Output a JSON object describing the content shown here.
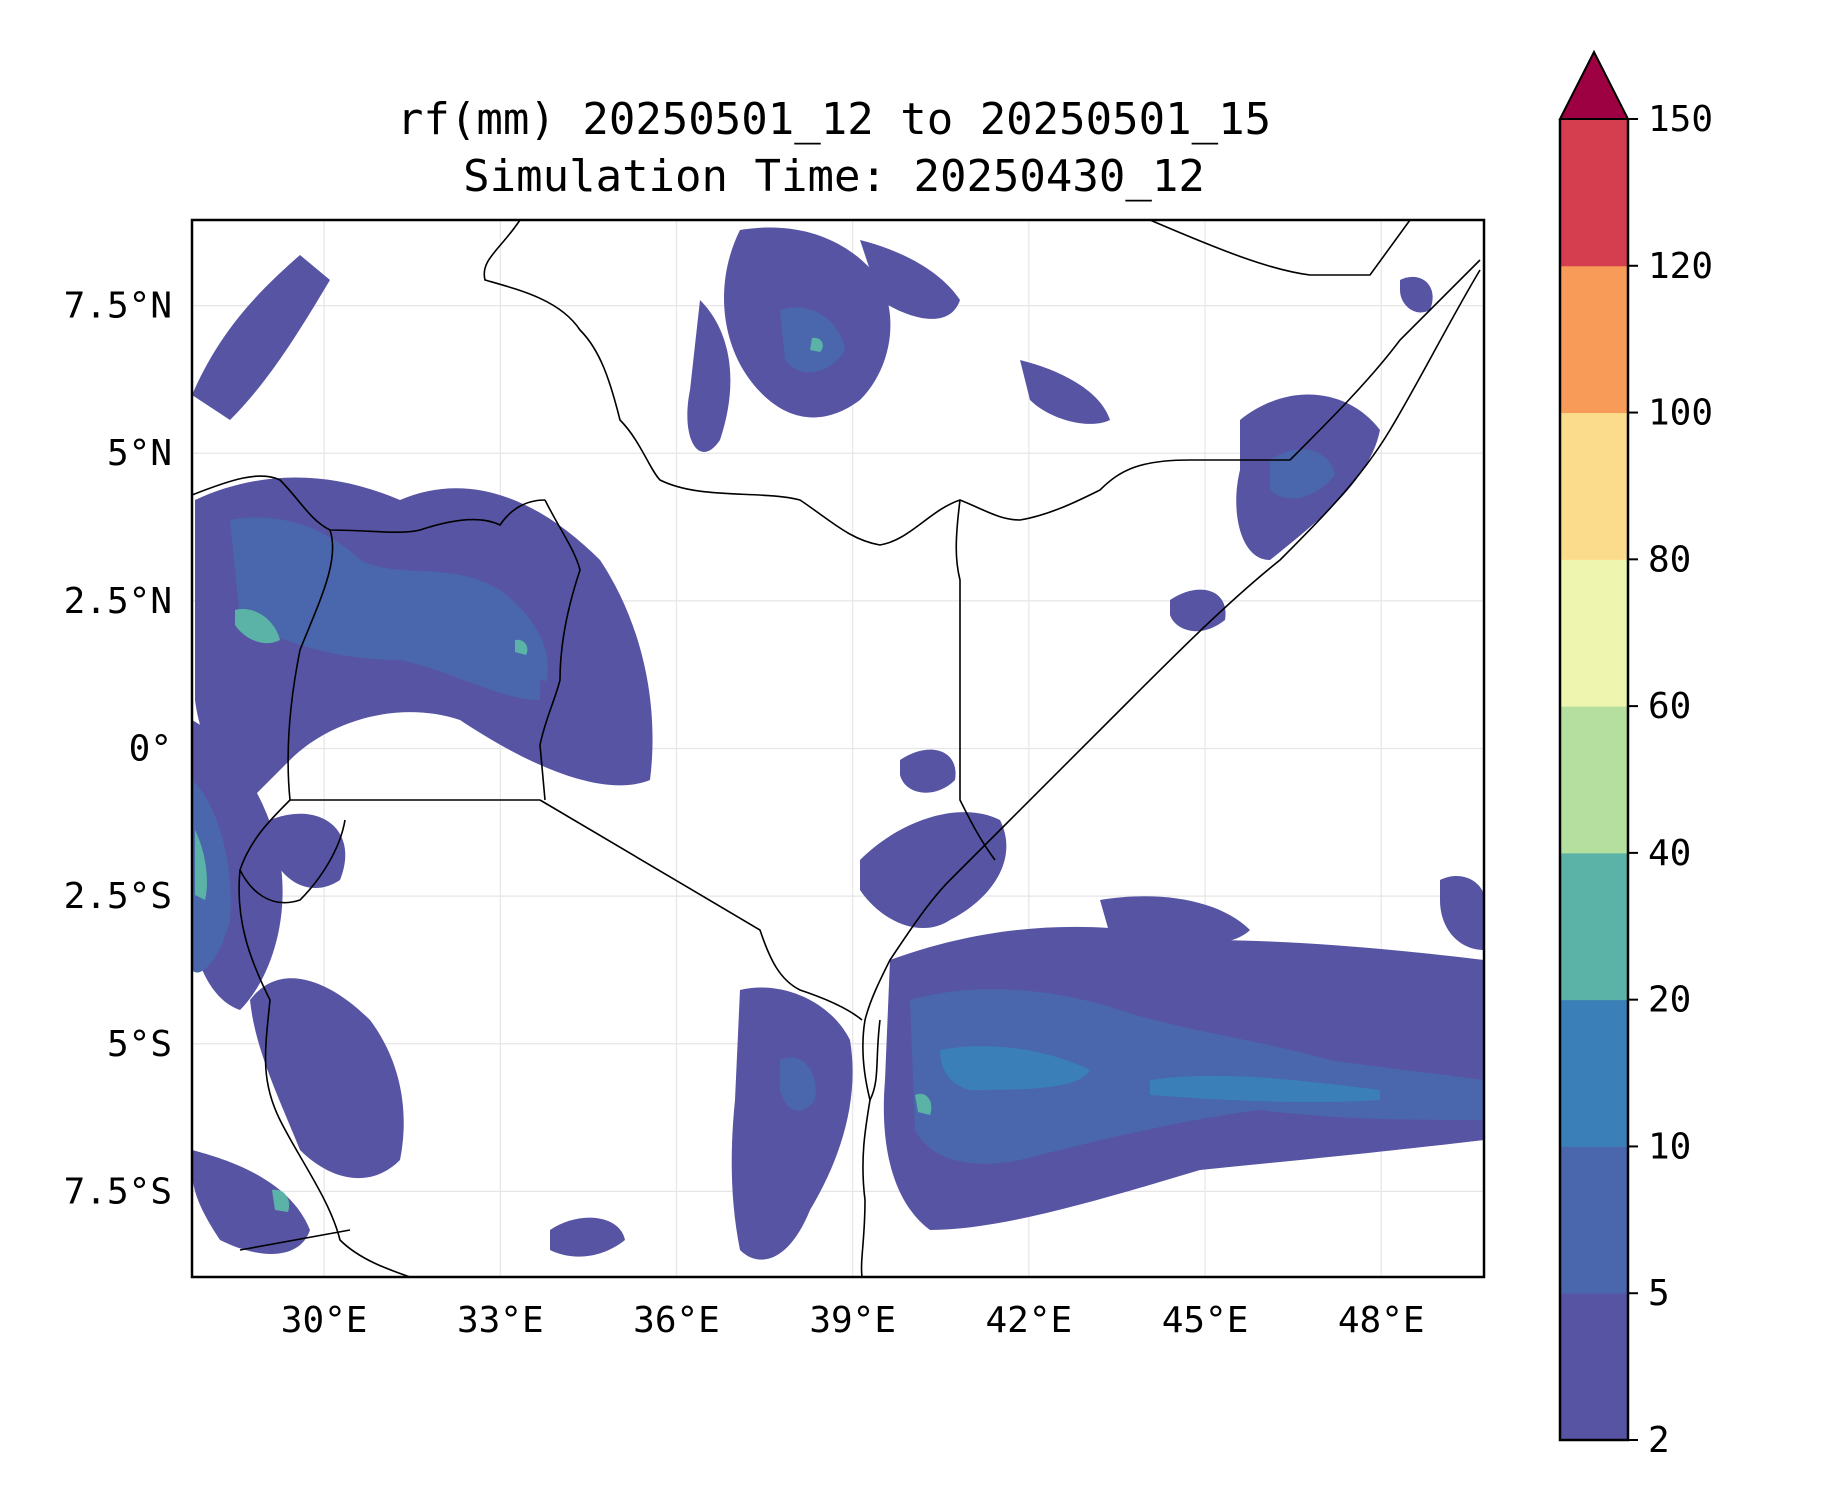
{
  "title": {
    "line1": "rf(mm) 20250501_12 to 20250501_15",
    "line2": "Simulation Time: 20250430_12"
  },
  "map": {
    "lon_range": [
      27.75,
      49.75
    ],
    "lat_range": [
      -8.95,
      8.95
    ],
    "gridlines": true,
    "x_ticks": [
      {
        "value": 30,
        "label": "30°E"
      },
      {
        "value": 33,
        "label": "33°E"
      },
      {
        "value": 36,
        "label": "36°E"
      },
      {
        "value": 39,
        "label": "39°E"
      },
      {
        "value": 42,
        "label": "42°E"
      },
      {
        "value": 45,
        "label": "45°E"
      },
      {
        "value": 48,
        "label": "48°E"
      }
    ],
    "y_ticks": [
      {
        "value": 7.5,
        "label": "7.5°N"
      },
      {
        "value": 5,
        "label": "5°N"
      },
      {
        "value": 2.5,
        "label": "2.5°N"
      },
      {
        "value": 0,
        "label": "0°"
      },
      {
        "value": -2.5,
        "label": "2.5°S"
      },
      {
        "value": -5,
        "label": "5°S"
      },
      {
        "value": -7.5,
        "label": "7.5°S"
      }
    ]
  },
  "colorbar": {
    "levels": [
      2,
      5,
      10,
      20,
      40,
      60,
      80,
      100,
      120,
      150
    ],
    "labels": [
      "2",
      "5",
      "10",
      "20",
      "40",
      "60",
      "80",
      "100",
      "120",
      "150"
    ],
    "colors": [
      "#5754a4",
      "#4a66ac",
      "#3a7fb8",
      "#5bb3a7",
      "#b5df9e",
      "#eef5ae",
      "#fbdc8c",
      "#f89b59",
      "#d53e4f"
    ],
    "extend_color": "#9e0142",
    "extend": "max"
  }
}
